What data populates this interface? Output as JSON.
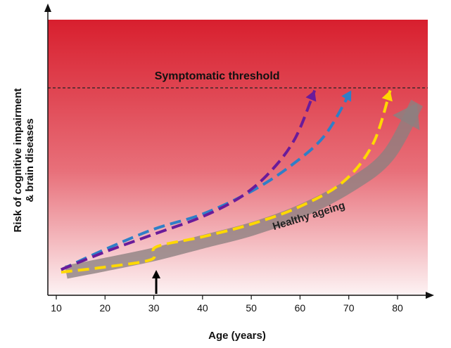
{
  "chart_data": {
    "type": "line",
    "xlabel": "Age (years)",
    "ylabel_line1": "Risk of cognitive impairment",
    "ylabel_line2": "& brain diseases",
    "x_ticks": [
      "10",
      "20",
      "30",
      "40",
      "50",
      "60",
      "70",
      "80"
    ],
    "xlim": [
      9,
      87
    ],
    "ylim": [
      0,
      100
    ],
    "threshold": {
      "label": "Symptomatic threshold",
      "value": 78
    },
    "background_gradient": {
      "top": "#d81f2e",
      "mid": "#e8707a",
      "bottom": "#fdf3f4"
    },
    "series": [
      {
        "name": "Healthy ageing",
        "color": "#8c8080",
        "style": "thick-arrow",
        "points": [
          [
            12,
            5
          ],
          [
            20,
            8
          ],
          [
            30,
            12
          ],
          [
            40,
            17
          ],
          [
            50,
            22
          ],
          [
            60,
            29
          ],
          [
            70,
            39
          ],
          [
            78,
            51
          ],
          [
            84,
            72
          ]
        ]
      },
      {
        "color": "#6a1b9a",
        "style": "dashed-arrow",
        "points": [
          [
            11,
            6
          ],
          [
            20,
            13
          ],
          [
            30,
            20
          ],
          [
            40,
            27
          ],
          [
            48,
            35
          ],
          [
            54,
            45
          ],
          [
            59,
            58
          ],
          [
            63,
            77
          ]
        ]
      },
      {
        "color": "#2f7fc7",
        "style": "dashed-arrow",
        "points": [
          [
            11,
            6
          ],
          [
            20,
            14
          ],
          [
            30,
            22
          ],
          [
            40,
            28
          ],
          [
            50,
            37
          ],
          [
            58,
            47
          ],
          [
            65,
            59
          ],
          [
            70.5,
            77
          ]
        ]
      },
      {
        "color": "#ffd800",
        "style": "dashed-arrow",
        "points": [
          [
            11,
            5
          ],
          [
            20,
            7
          ],
          [
            29.5,
            10
          ],
          [
            30.5,
            15
          ],
          [
            40,
            19
          ],
          [
            50,
            24
          ],
          [
            60,
            31
          ],
          [
            69,
            41
          ],
          [
            75,
            56
          ],
          [
            78.5,
            77
          ]
        ]
      }
    ],
    "annotations": [
      {
        "kind": "arrow-up",
        "x": 30.5,
        "color": "#000000"
      }
    ]
  }
}
